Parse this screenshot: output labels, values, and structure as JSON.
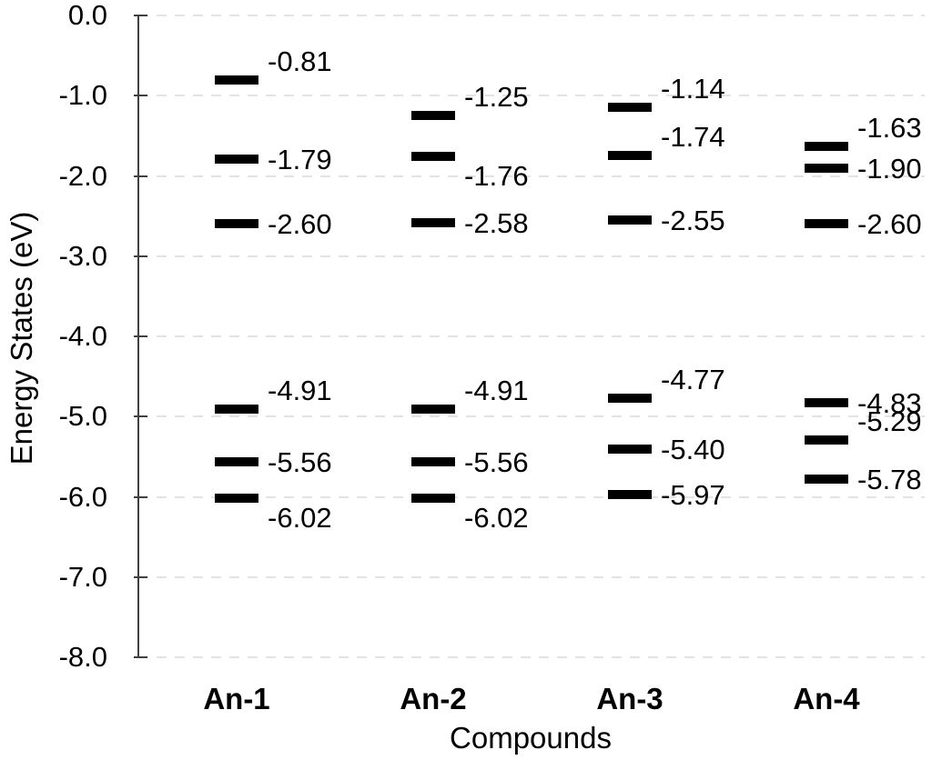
{
  "chart_data": {
    "type": "scatter",
    "subtype": "energy-level-diagram",
    "title": "",
    "xlabel": "Compounds",
    "ylabel": "Energy States (eV)",
    "ylim": [
      -8.0,
      0.0
    ],
    "ytick_interval": 1.0,
    "ytick_labels": [
      "0.0",
      "-1.0",
      "-2.0",
      "-3.0",
      "-4.0",
      "-5.0",
      "-6.0",
      "-7.0",
      "-8.0"
    ],
    "grid": {
      "horizontal": true,
      "style": "dashed",
      "color": "#e3e3e3"
    },
    "legend_position": "none",
    "marker_style": "thick-black-dash",
    "categories": [
      "An-1",
      "An-2",
      "An-3",
      "An-4"
    ],
    "series": [
      {
        "name": "An-1",
        "levels": [
          {
            "value": -0.81,
            "label": "-0.81",
            "label_pos": "above"
          },
          {
            "value": -1.79,
            "label": "-1.79",
            "label_pos": "center"
          },
          {
            "value": -2.6,
            "label": "-2.60",
            "label_pos": "center"
          },
          {
            "value": -4.91,
            "label": "-4.91",
            "label_pos": "above"
          },
          {
            "value": -5.56,
            "label": "-5.56",
            "label_pos": "center"
          },
          {
            "value": -6.02,
            "label": "-6.02",
            "label_pos": "below"
          }
        ]
      },
      {
        "name": "An-2",
        "levels": [
          {
            "value": -1.25,
            "label": "-1.25",
            "label_pos": "above"
          },
          {
            "value": -1.76,
            "label": "-1.76",
            "label_pos": "below"
          },
          {
            "value": -2.58,
            "label": "-2.58",
            "label_pos": "center"
          },
          {
            "value": -4.91,
            "label": "-4.91",
            "label_pos": "above"
          },
          {
            "value": -5.56,
            "label": "-5.56",
            "label_pos": "center"
          },
          {
            "value": -6.02,
            "label": "-6.02",
            "label_pos": "below"
          }
        ]
      },
      {
        "name": "An-3",
        "levels": [
          {
            "value": -1.14,
            "label": "-1.14",
            "label_pos": "above"
          },
          {
            "value": -1.74,
            "label": "-1.74",
            "label_pos": "above"
          },
          {
            "value": -2.55,
            "label": "-2.55",
            "label_pos": "center"
          },
          {
            "value": -4.77,
            "label": "-4.77",
            "label_pos": "above"
          },
          {
            "value": -5.4,
            "label": "-5.40",
            "label_pos": "center"
          },
          {
            "value": -5.97,
            "label": "-5.97",
            "label_pos": "center"
          }
        ]
      },
      {
        "name": "An-4",
        "levels": [
          {
            "value": -1.63,
            "label": "-1.63",
            "label_pos": "above"
          },
          {
            "value": -1.9,
            "label": "-1.90",
            "label_pos": "center"
          },
          {
            "value": -2.6,
            "label": "-2.60",
            "label_pos": "center"
          },
          {
            "value": -4.83,
            "label": "-4.83",
            "label_pos": "center"
          },
          {
            "value": -5.29,
            "label": "-5.29",
            "label_pos": "above"
          },
          {
            "value": -5.78,
            "label": "-5.78",
            "label_pos": "center"
          }
        ]
      }
    ],
    "colors": {
      "level_bar": "#000000",
      "grid": "#e3e3e3",
      "axis": "#404040",
      "text": "#000000",
      "background": "#ffffff"
    }
  }
}
